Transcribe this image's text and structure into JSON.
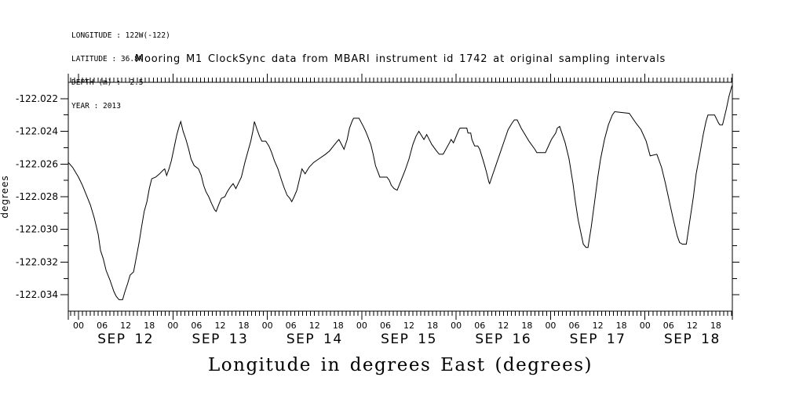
{
  "meta_block": {
    "longitude": "LONGITUDE : 122W(-122)",
    "latitude": "LATITUDE : 36.8N",
    "depth": "DEPTH (m) : -2.5",
    "year": "YEAR : 2013"
  },
  "chart_data": {
    "type": "line",
    "title": "Mooring M1 ClockSync data from MBARI instrument id 1742 at original sampling intervals",
    "xlabel": "Longitude in degrees East (degrees)",
    "ylabel": "degrees",
    "line_color": "#000000",
    "background_color": "#ffffff",
    "grid": false,
    "legend": "none",
    "x_unit": "hours since SEP 12 2013 00:00",
    "x_range_hours": [
      -2.6,
      166.2
    ],
    "ylim": [
      -122.035,
      -122.021
    ],
    "x_day_labels": [
      "SEP 12",
      "SEP 13",
      "SEP 14",
      "SEP 15",
      "SEP 16",
      "SEP 17",
      "SEP 18"
    ],
    "x_hour_labels": [
      "00",
      "06",
      "12",
      "18"
    ],
    "x_hour_label_step": 6,
    "x_minor_tick_hours": 1,
    "y_minor_tick_interval": 0.001,
    "y_major_ticks": [
      {
        "value": -122.022,
        "label": "-122.022"
      },
      {
        "value": -122.024,
        "label": "-122.024"
      },
      {
        "value": -122.026,
        "label": "-122.026"
      },
      {
        "value": -122.028,
        "label": "-122.028"
      },
      {
        "value": -122.03,
        "label": "-122.030"
      },
      {
        "value": -122.032,
        "label": "-122.032"
      },
      {
        "value": -122.034,
        "label": "-122.034"
      }
    ],
    "points": [
      [
        -2.6,
        -122.0259
      ],
      [
        -1.5,
        -122.0262
      ],
      [
        0,
        -122.0268
      ],
      [
        1,
        -122.0273
      ],
      [
        2,
        -122.0279
      ],
      [
        3,
        -122.0285
      ],
      [
        4,
        -122.0293
      ],
      [
        5,
        -122.0303
      ],
      [
        5.6,
        -122.0313
      ],
      [
        6.3,
        -122.0318
      ],
      [
        7,
        -122.0325
      ],
      [
        8,
        -122.0331
      ],
      [
        9,
        -122.0338
      ],
      [
        9.6,
        -122.0341
      ],
      [
        10.3,
        -122.0343
      ],
      [
        11.2,
        -122.0343
      ],
      [
        11.8,
        -122.0338
      ],
      [
        12.5,
        -122.0333
      ],
      [
        13.1,
        -122.0328
      ],
      [
        14,
        -122.0326
      ],
      [
        14.7,
        -122.0317
      ],
      [
        15.4,
        -122.0308
      ],
      [
        16,
        -122.0299
      ],
      [
        16.7,
        -122.0289
      ],
      [
        17.4,
        -122.0283
      ],
      [
        18,
        -122.0275
      ],
      [
        18.6,
        -122.0269
      ],
      [
        19.6,
        -122.0268
      ],
      [
        20.6,
        -122.0266
      ],
      [
        21.4,
        -122.0264
      ],
      [
        21.9,
        -122.0263
      ],
      [
        22.4,
        -122.0267
      ],
      [
        23,
        -122.0263
      ],
      [
        23.6,
        -122.0258
      ],
      [
        24.3,
        -122.025
      ],
      [
        25,
        -122.0242
      ],
      [
        25.7,
        -122.0236
      ],
      [
        26,
        -122.0234
      ],
      [
        26.6,
        -122.024
      ],
      [
        27.3,
        -122.0245
      ],
      [
        28,
        -122.0251
      ],
      [
        28.6,
        -122.0257
      ],
      [
        29.4,
        -122.0261
      ],
      [
        30.5,
        -122.0263
      ],
      [
        31.2,
        -122.0267
      ],
      [
        31.8,
        -122.0273
      ],
      [
        32.4,
        -122.0277
      ],
      [
        33.1,
        -122.028
      ],
      [
        33.8,
        -122.0284
      ],
      [
        34.6,
        -122.0288
      ],
      [
        35,
        -122.0289
      ],
      [
        35.6,
        -122.0285
      ],
      [
        36.3,
        -122.0281
      ],
      [
        37.2,
        -122.028
      ],
      [
        37.8,
        -122.0277
      ],
      [
        38.6,
        -122.0274
      ],
      [
        39.3,
        -122.0272
      ],
      [
        40,
        -122.0275
      ],
      [
        40.6,
        -122.0272
      ],
      [
        41.4,
        -122.0268
      ],
      [
        42.3,
        -122.0259
      ],
      [
        43.1,
        -122.0252
      ],
      [
        43.8,
        -122.0246
      ],
      [
        44.3,
        -122.024
      ],
      [
        44.7,
        -122.0234
      ],
      [
        45.4,
        -122.0239
      ],
      [
        46,
        -122.0243
      ],
      [
        46.6,
        -122.0246
      ],
      [
        47.6,
        -122.0246
      ],
      [
        48.4,
        -122.0249
      ],
      [
        49.1,
        -122.0253
      ],
      [
        49.8,
        -122.0258
      ],
      [
        50.7,
        -122.0263
      ],
      [
        51.5,
        -122.0269
      ],
      [
        52.2,
        -122.0274
      ],
      [
        53,
        -122.0279
      ],
      [
        53.7,
        -122.0281
      ],
      [
        54.2,
        -122.0283
      ],
      [
        54.8,
        -122.028
      ],
      [
        55.5,
        -122.0276
      ],
      [
        56.1,
        -122.027
      ],
      [
        56.8,
        -122.0263
      ],
      [
        57.6,
        -122.0266
      ],
      [
        58.6,
        -122.0262
      ],
      [
        59.8,
        -122.0259
      ],
      [
        61,
        -122.0257
      ],
      [
        62.8,
        -122.0254
      ],
      [
        63.8,
        -122.0252
      ],
      [
        64.8,
        -122.0249
      ],
      [
        65.8,
        -122.0246
      ],
      [
        66.2,
        -122.0245
      ],
      [
        67.5,
        -122.0251
      ],
      [
        68.3,
        -122.0245
      ],
      [
        68.9,
        -122.0238
      ],
      [
        69.5,
        -122.0234
      ],
      [
        69.9,
        -122.0232
      ],
      [
        71.3,
        -122.0232
      ],
      [
        72.4,
        -122.0237
      ],
      [
        73,
        -122.024
      ],
      [
        73.5,
        -122.0243
      ],
      [
        74.3,
        -122.0248
      ],
      [
        74.9,
        -122.0254
      ],
      [
        75.5,
        -122.0261
      ],
      [
        76.3,
        -122.0266
      ],
      [
        76.6,
        -122.0268
      ],
      [
        78.4,
        -122.0268
      ],
      [
        79,
        -122.027
      ],
      [
        79.5,
        -122.0273
      ],
      [
        80.2,
        -122.0275
      ],
      [
        81,
        -122.0276
      ],
      [
        82,
        -122.027
      ],
      [
        83,
        -122.0264
      ],
      [
        84,
        -122.0257
      ],
      [
        85,
        -122.0248
      ],
      [
        85.8,
        -122.0243
      ],
      [
        86.5,
        -122.024
      ],
      [
        87.8,
        -122.0245
      ],
      [
        88.5,
        -122.0242
      ],
      [
        89.8,
        -122.0248
      ],
      [
        91,
        -122.0252
      ],
      [
        91.7,
        -122.0254
      ],
      [
        92.7,
        -122.0254
      ],
      [
        94.3,
        -122.0247
      ],
      [
        94.7,
        -122.0245
      ],
      [
        95.3,
        -122.0247
      ],
      [
        96.7,
        -122.0239
      ],
      [
        97,
        -122.0238
      ],
      [
        98.7,
        -122.0238
      ],
      [
        99,
        -122.0241
      ],
      [
        99.7,
        -122.0241
      ],
      [
        100,
        -122.0245
      ],
      [
        100.7,
        -122.0249
      ],
      [
        101.5,
        -122.0249
      ],
      [
        102,
        -122.0251
      ],
      [
        103,
        -122.0259
      ],
      [
        103.7,
        -122.0265
      ],
      [
        104.3,
        -122.0271
      ],
      [
        104.5,
        -122.0272
      ],
      [
        105.2,
        -122.0267
      ],
      [
        106.2,
        -122.026
      ],
      [
        107.2,
        -122.0253
      ],
      [
        108.2,
        -122.0246
      ],
      [
        109.2,
        -122.0239
      ],
      [
        110.2,
        -122.0235
      ],
      [
        110.8,
        -122.0233
      ],
      [
        111.5,
        -122.0233
      ],
      [
        112.5,
        -122.0238
      ],
      [
        113.5,
        -122.0242
      ],
      [
        114.5,
        -122.0246
      ],
      [
        116,
        -122.0251
      ],
      [
        116.5,
        -122.0253
      ],
      [
        118.7,
        -122.0253
      ],
      [
        120.2,
        -122.0245
      ],
      [
        121.3,
        -122.0241
      ],
      [
        121.7,
        -122.0238
      ],
      [
        122.3,
        -122.0237
      ],
      [
        123.7,
        -122.0247
      ],
      [
        124.7,
        -122.0257
      ],
      [
        125.7,
        -122.0272
      ],
      [
        126.3,
        -122.0283
      ],
      [
        127,
        -122.0294
      ],
      [
        127.7,
        -122.0302
      ],
      [
        128.3,
        -122.0309
      ],
      [
        129,
        -122.0311
      ],
      [
        129.5,
        -122.0311
      ],
      [
        130.3,
        -122.0299
      ],
      [
        131.3,
        -122.0281
      ],
      [
        132,
        -122.0268
      ],
      [
        132.7,
        -122.0257
      ],
      [
        133.7,
        -122.0245
      ],
      [
        134.7,
        -122.0236
      ],
      [
        135.7,
        -122.023
      ],
      [
        136.3,
        -122.0228
      ],
      [
        140,
        -122.0229
      ],
      [
        141.7,
        -122.0235
      ],
      [
        143,
        -122.0239
      ],
      [
        144.3,
        -122.0246
      ],
      [
        145.3,
        -122.0255
      ],
      [
        147,
        -122.0254
      ],
      [
        148.2,
        -122.0262
      ],
      [
        149.2,
        -122.0272
      ],
      [
        150.2,
        -122.0283
      ],
      [
        151.2,
        -122.0294
      ],
      [
        152.2,
        -122.0304
      ],
      [
        152.8,
        -122.0308
      ],
      [
        153.5,
        -122.0309
      ],
      [
        154.5,
        -122.0309
      ],
      [
        155.3,
        -122.0296
      ],
      [
        156.3,
        -122.028
      ],
      [
        157,
        -122.0266
      ],
      [
        158,
        -122.0253
      ],
      [
        158.8,
        -122.0242
      ],
      [
        159.5,
        -122.0234
      ],
      [
        160,
        -122.023
      ],
      [
        161.7,
        -122.023
      ],
      [
        162.7,
        -122.0235
      ],
      [
        163,
        -122.0236
      ],
      [
        163.7,
        -122.0236
      ],
      [
        164.7,
        -122.0226
      ],
      [
        165.3,
        -122.0219
      ],
      [
        166.1,
        -122.0212
      ]
    ]
  }
}
